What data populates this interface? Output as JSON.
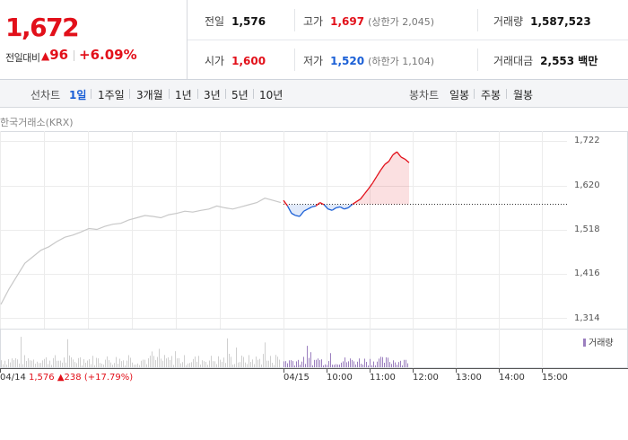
{
  "summary": {
    "current_price": "1,672",
    "change_label": "전일대비",
    "change_symbol": "▲",
    "change_value": "96",
    "change_pct": "+6.09%"
  },
  "info": {
    "prev_close_label": "전일",
    "prev_close": "1,576",
    "open_label": "시가",
    "open": "1,600",
    "high_label": "고가",
    "high": "1,697",
    "upper_limit": "(상한가 2,045)",
    "low_label": "저가",
    "low": "1,520",
    "lower_limit": "(하한가 1,104)",
    "volume_label": "거래량",
    "volume": "1,587,523",
    "amount_label": "거래대금",
    "amount": "2,553 백만"
  },
  "tabs": {
    "line_label": "선차트",
    "line_tabs": [
      "1일",
      "1주일",
      "3개월",
      "1년",
      "3년",
      "5년",
      "10년"
    ],
    "active_line_tab": "1일",
    "candle_label": "봉차트",
    "candle_tabs": [
      "일봉",
      "주봉",
      "월봉"
    ]
  },
  "source": "한국거래소(KRX)",
  "legend": "거래량",
  "prev_day": {
    "date": "04/14",
    "close": "1,576",
    "symbol": "▲",
    "change": "238",
    "pct": "(+17.79%)"
  },
  "colors": {
    "up": "#e2101a",
    "down": "#1a5fd6",
    "prev_line": "#c8c8c8",
    "volume": "#9b7fbf"
  },
  "chart_data": {
    "type": "line",
    "y_ticks": [
      "1,722",
      "1,620",
      "1,518",
      "1,416",
      "1,314"
    ],
    "ylim": [
      1314,
      1722
    ],
    "x_ticks": [
      "04/15",
      "10:00",
      "11:00",
      "12:00",
      "13:00",
      "14:00",
      "15:00"
    ],
    "reference_price": 1576,
    "series": [
      {
        "values": [
          1345,
          1380,
          1410,
          1440,
          1455,
          1470,
          1478,
          1490,
          1500,
          1505,
          1512,
          1520,
          1518,
          1525,
          1530,
          1532,
          1540,
          1545,
          1550,
          1548,
          1545,
          1552,
          1555,
          1560,
          1558,
          1562,
          1565,
          1572,
          1568,
          1565,
          1570,
          1575,
          1580,
          1590,
          1585,
          1580
        ]
      },
      {
        "values": [
          1585,
          1572,
          1555,
          1550,
          1548,
          1560,
          1565,
          1570,
          1572,
          1580,
          1575,
          1565,
          1562,
          1568,
          1570,
          1565,
          1568,
          1576,
          1582,
          1588,
          1600,
          1612,
          1625,
          1640,
          1655,
          1668,
          1675,
          1690,
          1697,
          1685,
          1680,
          1672
        ]
      }
    ],
    "volume": {
      "label": "거래량"
    }
  }
}
